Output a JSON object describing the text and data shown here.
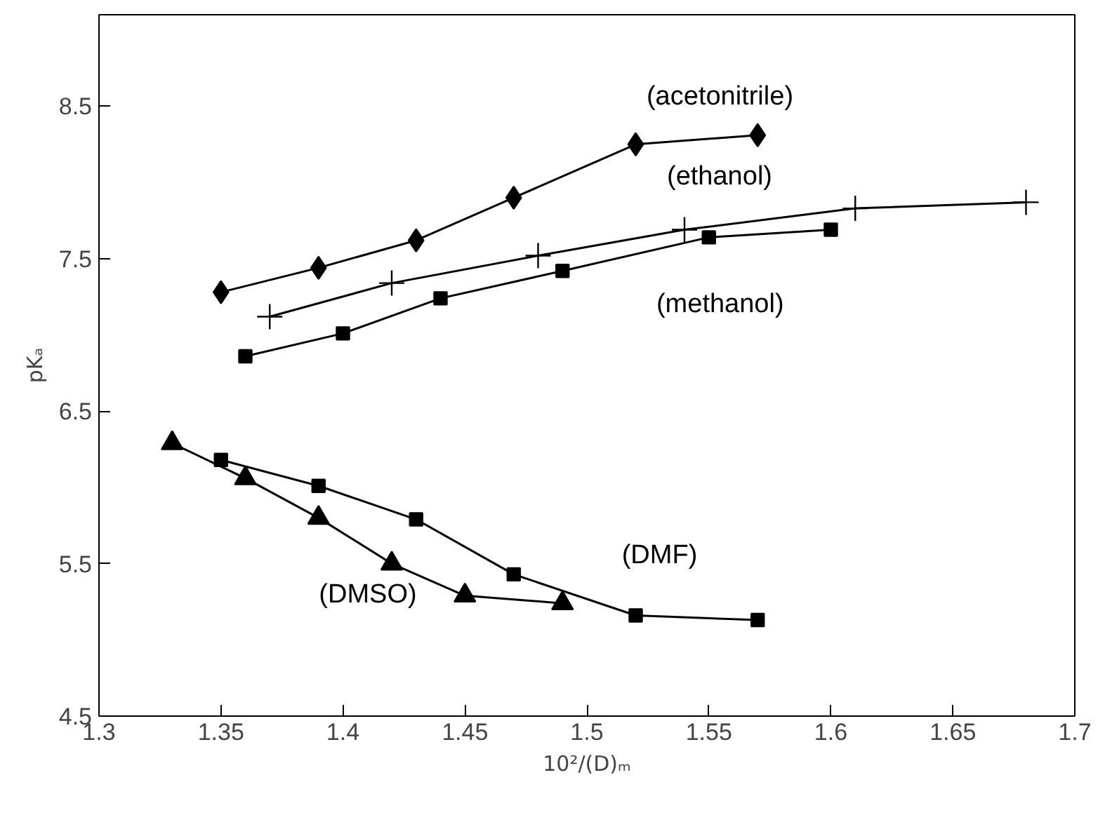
{
  "chart_data": {
    "type": "line",
    "xlabel": "10²/(D)ₘ",
    "ylabel": "pKₐ",
    "xlim": [
      1.3,
      1.7
    ],
    "ylim": [
      4.5,
      9.1
    ],
    "xticks": [
      1.3,
      1.35,
      1.4,
      1.45,
      1.5,
      1.55,
      1.6,
      1.65,
      1.7
    ],
    "yticks": [
      4.5,
      5.5,
      6.5,
      7.5,
      8.5
    ],
    "grid": false,
    "line_style": "solid",
    "series": [
      {
        "name": "(acetonitrile)",
        "color": "#000000",
        "marker": "diamond",
        "x": [
          1.35,
          1.39,
          1.43,
          1.47,
          1.52,
          1.57
        ],
        "values": [
          7.28,
          7.44,
          7.62,
          7.9,
          8.25,
          8.31
        ]
      },
      {
        "name": "(ethanol)",
        "color": "#000000",
        "marker": "cross",
        "x": [
          1.37,
          1.42,
          1.48,
          1.54,
          1.61,
          1.68
        ],
        "values": [
          7.12,
          7.34,
          7.52,
          7.69,
          7.83,
          7.87
        ]
      },
      {
        "name": "(methanol)",
        "color": "#000000",
        "marker": "square",
        "x": [
          1.36,
          1.4,
          1.44,
          1.49,
          1.55,
          1.6
        ],
        "values": [
          6.86,
          7.01,
          7.24,
          7.42,
          7.64,
          7.69
        ]
      },
      {
        "name": "(DMF)",
        "color": "#000000",
        "marker": "square",
        "x": [
          1.35,
          1.39,
          1.43,
          1.47,
          1.52,
          1.57
        ],
        "values": [
          6.18,
          6.01,
          5.79,
          5.43,
          5.16,
          5.13
        ]
      },
      {
        "name": "(DMSO)",
        "color": "#000000",
        "marker": "triangle",
        "x": [
          1.33,
          1.36,
          1.39,
          1.42,
          1.45,
          1.49
        ],
        "values": [
          6.29,
          6.06,
          5.8,
          5.5,
          5.29,
          5.24
        ]
      }
    ]
  }
}
